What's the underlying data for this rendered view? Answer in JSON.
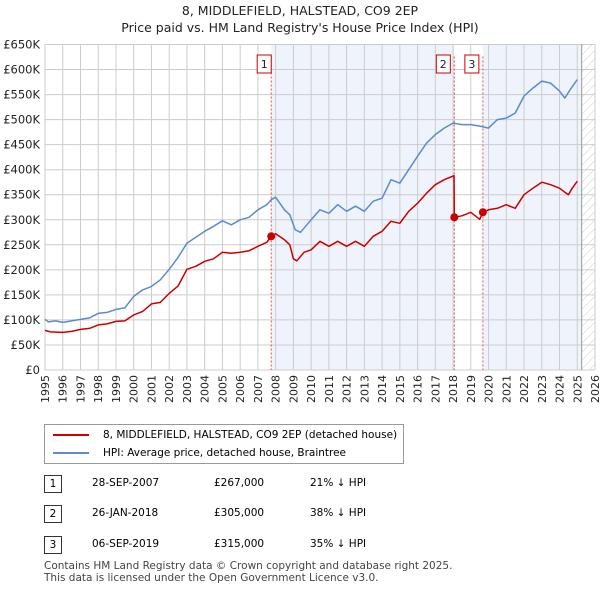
{
  "title": "8, MIDDLEFIELD, HALSTEAD, CO9 2EP",
  "subtitle": "Price paid vs. HM Land Registry's House Price Index (HPI)",
  "chart_data": {
    "type": "line",
    "xlim": [
      1995,
      2026
    ],
    "ylim": [
      0,
      650000
    ],
    "x_ticks": [
      "1995",
      "1996",
      "1997",
      "1998",
      "1999",
      "2000",
      "2001",
      "2002",
      "2003",
      "2004",
      "2005",
      "2006",
      "2007",
      "2008",
      "2009",
      "2010",
      "2011",
      "2012",
      "2013",
      "2014",
      "2015",
      "2016",
      "2017",
      "2018",
      "2019",
      "2020",
      "2021",
      "2022",
      "2023",
      "2024",
      "2025",
      "2026"
    ],
    "y_ticks": [
      "£0",
      "£50K",
      "£100K",
      "£150K",
      "£200K",
      "£250K",
      "£300K",
      "£350K",
      "£400K",
      "£450K",
      "£500K",
      "£550K",
      "£600K",
      "£650K"
    ],
    "grid": true,
    "series": [
      {
        "name": "8, MIDDLEFIELD, HALSTEAD, CO9 2EP (detached house)",
        "color": "#cc0000",
        "points": [
          [
            1995,
            79
          ],
          [
            1995.3,
            76
          ],
          [
            1996,
            75
          ],
          [
            1996.5,
            77
          ],
          [
            1997,
            81
          ],
          [
            1997.5,
            83
          ],
          [
            1998,
            90
          ],
          [
            1998.5,
            92
          ],
          [
            1999,
            97
          ],
          [
            1999.5,
            98
          ],
          [
            2000,
            110
          ],
          [
            2000.5,
            117
          ],
          [
            2001,
            132
          ],
          [
            2001.5,
            135
          ],
          [
            2002,
            153
          ],
          [
            2002.5,
            168
          ],
          [
            2003,
            201
          ],
          [
            2003.5,
            207
          ],
          [
            2004,
            217
          ],
          [
            2004.5,
            222
          ],
          [
            2005,
            235
          ],
          [
            2005.5,
            233
          ],
          [
            2006,
            235
          ],
          [
            2006.5,
            238
          ],
          [
            2007,
            247
          ],
          [
            2007.5,
            255
          ],
          [
            2007.75,
            267
          ],
          [
            2008,
            272
          ],
          [
            2008.5,
            260
          ],
          [
            2008.8,
            250
          ],
          [
            2009,
            222
          ],
          [
            2009.2,
            218
          ],
          [
            2009.6,
            235
          ],
          [
            2010,
            240
          ],
          [
            2010.5,
            257
          ],
          [
            2011,
            247
          ],
          [
            2011.5,
            257
          ],
          [
            2012,
            247
          ],
          [
            2012.5,
            257
          ],
          [
            2013,
            247
          ],
          [
            2013.5,
            267
          ],
          [
            2014,
            277
          ],
          [
            2014.5,
            297
          ],
          [
            2015,
            293
          ],
          [
            2015.5,
            317
          ],
          [
            2016,
            333
          ],
          [
            2016.5,
            353
          ],
          [
            2017,
            370
          ],
          [
            2017.5,
            380
          ],
          [
            2018.05,
            388
          ],
          [
            2018.07,
            305
          ],
          [
            2018.5,
            308
          ],
          [
            2019,
            315
          ],
          [
            2019.5,
            301
          ],
          [
            2019.68,
            315
          ],
          [
            2020,
            320
          ],
          [
            2020.5,
            323
          ],
          [
            2021,
            330
          ],
          [
            2021.5,
            323
          ],
          [
            2022,
            350
          ],
          [
            2022.5,
            363
          ],
          [
            2023,
            375
          ],
          [
            2023.5,
            370
          ],
          [
            2024,
            363
          ],
          [
            2024.3,
            355
          ],
          [
            2024.5,
            350
          ],
          [
            2024.7,
            362
          ],
          [
            2025,
            377
          ]
        ]
      },
      {
        "name": "HPI: Average price, detached house, Braintree",
        "color": "#5b8bd0",
        "points": [
          [
            1995,
            101
          ],
          [
            1995.2,
            96
          ],
          [
            1995.6,
            98
          ],
          [
            1996,
            95
          ],
          [
            1996.5,
            98
          ],
          [
            1997,
            101
          ],
          [
            1997.5,
            104
          ],
          [
            1998,
            113
          ],
          [
            1998.5,
            115
          ],
          [
            1999,
            121
          ],
          [
            1999.5,
            124
          ],
          [
            2000,
            147
          ],
          [
            2000.5,
            160
          ],
          [
            2001,
            167
          ],
          [
            2001.5,
            180
          ],
          [
            2002,
            201
          ],
          [
            2002.5,
            225
          ],
          [
            2003,
            253
          ],
          [
            2003.5,
            265
          ],
          [
            2004,
            277
          ],
          [
            2004.5,
            287
          ],
          [
            2005,
            298
          ],
          [
            2005.5,
            290
          ],
          [
            2006,
            300
          ],
          [
            2006.5,
            305
          ],
          [
            2007,
            320
          ],
          [
            2007.5,
            330
          ],
          [
            2007.75,
            340
          ],
          [
            2008,
            345
          ],
          [
            2008.5,
            320
          ],
          [
            2008.8,
            310
          ],
          [
            2009.1,
            280
          ],
          [
            2009.4,
            275
          ],
          [
            2010,
            300
          ],
          [
            2010.5,
            320
          ],
          [
            2011,
            313
          ],
          [
            2011.5,
            330
          ],
          [
            2012,
            317
          ],
          [
            2012.5,
            327
          ],
          [
            2013,
            317
          ],
          [
            2013.5,
            337
          ],
          [
            2014,
            343
          ],
          [
            2014.5,
            380
          ],
          [
            2015,
            373
          ],
          [
            2015.5,
            400
          ],
          [
            2016,
            427
          ],
          [
            2016.5,
            453
          ],
          [
            2017,
            470
          ],
          [
            2017.5,
            483
          ],
          [
            2018,
            493
          ],
          [
            2018.5,
            490
          ],
          [
            2019,
            490
          ],
          [
            2019.5,
            487
          ],
          [
            2020,
            483
          ],
          [
            2020.5,
            500
          ],
          [
            2021,
            503
          ],
          [
            2021.5,
            513
          ],
          [
            2022,
            547
          ],
          [
            2022.5,
            563
          ],
          [
            2023,
            577
          ],
          [
            2023.5,
            573
          ],
          [
            2024,
            557
          ],
          [
            2024.3,
            543
          ],
          [
            2024.6,
            560
          ],
          [
            2025,
            580
          ]
        ]
      }
    ],
    "sales": [
      {
        "label": "1",
        "x": 2007.75,
        "price": 267000
      },
      {
        "label": "2",
        "x": 2018.07,
        "price": 305000
      },
      {
        "label": "3",
        "x": 2019.68,
        "price": 315000
      }
    ],
    "forecast_from": 2025.25
  },
  "legend": {
    "property": "8, MIDDLEFIELD, HALSTEAD, CO9 2EP (detached house)",
    "hpi": "HPI: Average price, detached house, Braintree"
  },
  "transactions": [
    {
      "num": "1",
      "date": "28-SEP-2007",
      "price": "£267,000",
      "diff": "21% ↓ HPI"
    },
    {
      "num": "2",
      "date": "26-JAN-2018",
      "price": "£305,000",
      "diff": "38% ↓ HPI"
    },
    {
      "num": "3",
      "date": "06-SEP-2019",
      "price": "£315,000",
      "diff": "35% ↓ HPI"
    }
  ],
  "footer": {
    "line1": "Contains HM Land Registry data © Crown copyright and database right 2025.",
    "line2": "This data is licensed under the Open Government Licence v3.0."
  }
}
